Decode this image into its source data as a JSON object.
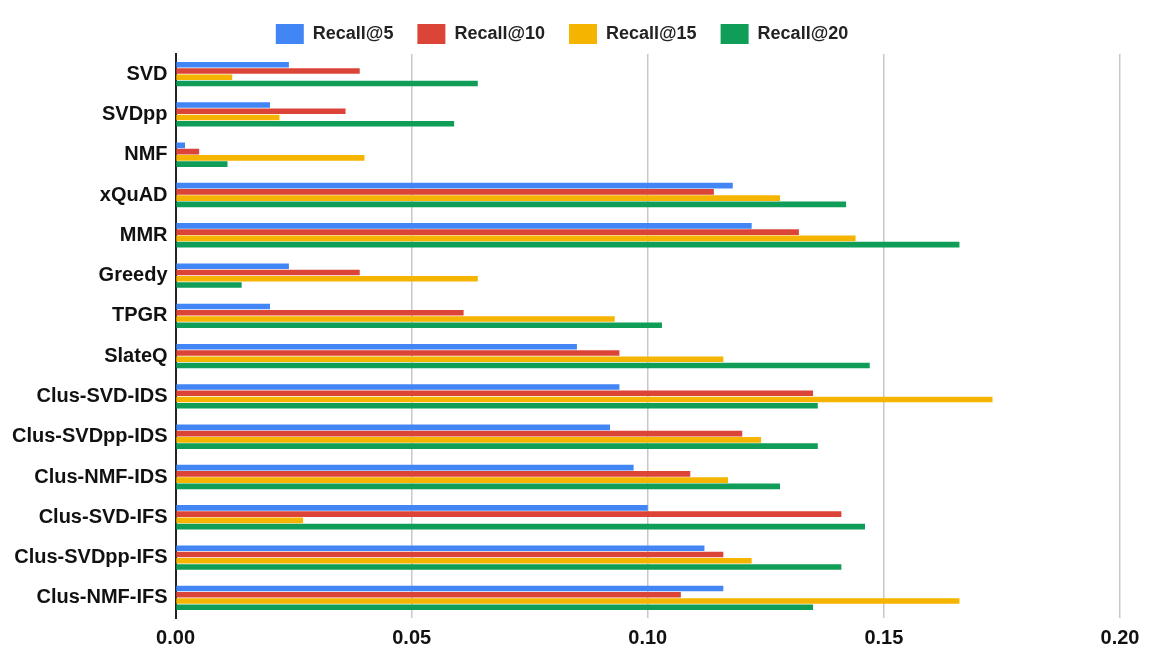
{
  "chart_data": {
    "type": "bar",
    "orientation": "horizontal",
    "categories": [
      "SVD",
      "SVDpp",
      "NMF",
      "xQuAD",
      "MMR",
      "Greedy",
      "TPGR",
      "SlateQ",
      "Clus-SVD-IDS",
      "Clus-SVDpp-IDS",
      "Clus-NMF-IDS",
      "Clus-SVD-IFS",
      "Clus-SVDpp-IFS",
      "Clus-NMF-IFS"
    ],
    "series": [
      {
        "name": "Recall@5",
        "color": "#4285f4",
        "values": [
          0.024,
          0.02,
          0.002,
          0.118,
          0.122,
          0.024,
          0.02,
          0.085,
          0.094,
          0.092,
          0.097,
          0.1,
          0.112,
          0.116
        ]
      },
      {
        "name": "Recall@10",
        "color": "#db4437",
        "values": [
          0.039,
          0.036,
          0.005,
          0.114,
          0.132,
          0.039,
          0.061,
          0.094,
          0.135,
          0.12,
          0.109,
          0.141,
          0.116,
          0.107
        ]
      },
      {
        "name": "Recall@15",
        "color": "#f4b400",
        "values": [
          0.012,
          0.022,
          0.04,
          0.128,
          0.144,
          0.064,
          0.093,
          0.116,
          0.173,
          0.124,
          0.117,
          0.027,
          0.122,
          0.166
        ]
      },
      {
        "name": "Recall@20",
        "color": "#0f9d58",
        "values": [
          0.064,
          0.059,
          0.011,
          0.142,
          0.166,
          0.014,
          0.103,
          0.147,
          0.136,
          0.136,
          0.128,
          0.146,
          0.141,
          0.135
        ]
      }
    ],
    "xlim": [
      0,
      0.2
    ],
    "xticks": [
      {
        "value": 0,
        "label": "0.00"
      },
      {
        "value": 0.05,
        "label": "0.05"
      },
      {
        "value": 0.1,
        "label": "0.10"
      },
      {
        "value": 0.15,
        "label": "0.15"
      },
      {
        "value": 0.2,
        "label": "0.20"
      }
    ],
    "grid": "x",
    "legend": "top"
  }
}
